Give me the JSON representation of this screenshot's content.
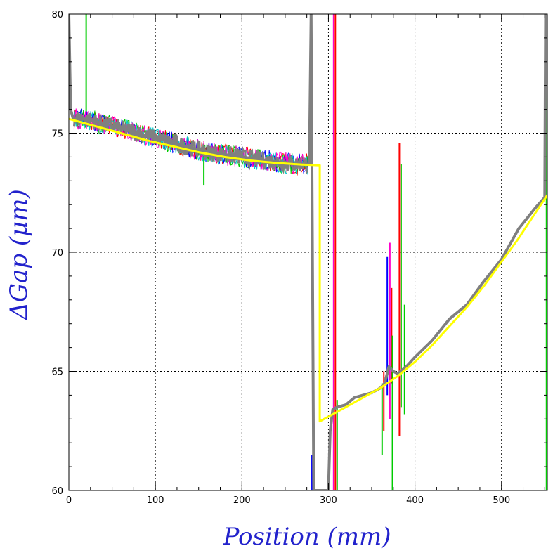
{
  "chart_data": {
    "type": "line",
    "title": "",
    "xlabel": "Position (mm)",
    "ylabel": "ΔGap (μm)",
    "xlim": [
      0,
      553
    ],
    "ylim": [
      60,
      80
    ],
    "x_ticks": [
      0,
      100,
      200,
      300,
      400,
      500
    ],
    "x_tick_labels": [
      "0",
      "100",
      "200",
      "300",
      "400",
      "500"
    ],
    "y_ticks": [
      60,
      65,
      70,
      75,
      80
    ],
    "y_tick_labels": [
      "60",
      "65",
      "70",
      "75",
      "80"
    ],
    "grid": true,
    "legend": "none",
    "colors": {
      "axis_title": "#2222cc",
      "measured": "#808080",
      "fit": "#ffff00",
      "channel_red": "#ff0000",
      "channel_green": "#00cc00",
      "channel_blue": "#0000ff",
      "channel_cyan": "#00cccc",
      "channel_magenta": "#ff00cc"
    },
    "series": [
      {
        "role": "measured",
        "x": [
          0,
          2,
          5,
          20,
          40,
          60,
          80,
          100,
          120,
          140,
          160,
          180,
          200,
          220,
          240,
          260,
          270,
          278,
          280,
          283,
          300,
          302,
          305,
          310,
          320,
          330,
          340,
          350,
          360,
          365,
          370,
          375,
          380,
          390,
          400,
          420,
          440,
          460,
          480,
          500,
          520,
          540,
          550,
          551
        ],
        "y": [
          80,
          76,
          75.6,
          75.6,
          75.4,
          75.2,
          75.0,
          74.8,
          74.6,
          74.4,
          74.2,
          74.1,
          74.0,
          73.9,
          73.8,
          73.7,
          73.7,
          73.7,
          80,
          60,
          60,
          62.5,
          63.4,
          63.5,
          63.6,
          63.9,
          64.0,
          64.1,
          64.3,
          64.5,
          65.2,
          65.0,
          64.9,
          65.2,
          65.6,
          66.3,
          67.2,
          67.8,
          68.8,
          69.7,
          71.0,
          71.9,
          72.3,
          80
        ]
      },
      {
        "role": "fit",
        "x": [
          0,
          30,
          60,
          90,
          120,
          150,
          180,
          210,
          240,
          270,
          290,
          290,
          300,
          320,
          340,
          360,
          380,
          400,
          420,
          440,
          460,
          480,
          500,
          520,
          540,
          553
        ],
        "y": [
          75.6,
          75.3,
          75.0,
          74.7,
          74.45,
          74.2,
          74.0,
          73.85,
          73.75,
          73.68,
          73.65,
          62.9,
          63.1,
          63.5,
          63.9,
          64.3,
          64.8,
          65.4,
          66.1,
          66.9,
          67.7,
          68.6,
          69.6,
          70.6,
          71.7,
          72.4
        ]
      }
    ],
    "spikes": [
      {
        "color": "#00cc00",
        "x": 20,
        "y1": 75.8,
        "y2": 80
      },
      {
        "color": "#00cc00",
        "x": 156,
        "y1": 72.8,
        "y2": 74.4
      },
      {
        "color": "#0000ff",
        "x": 281,
        "y1": 60,
        "y2": 61.5
      },
      {
        "color": "#ff00cc",
        "x": 306,
        "y1": 60,
        "y2": 80
      },
      {
        "color": "#ff0000",
        "x": 308,
        "y1": 60,
        "y2": 80
      },
      {
        "color": "#00cc00",
        "x": 310,
        "y1": 60,
        "y2": 63.8
      },
      {
        "color": "#00cc00",
        "x": 362,
        "y1": 61.5,
        "y2": 64.5
      },
      {
        "color": "#ff0000",
        "x": 364,
        "y1": 62.5,
        "y2": 65.0
      },
      {
        "color": "#0000ff",
        "x": 368,
        "y1": 64.0,
        "y2": 69.8
      },
      {
        "color": "#ff00cc",
        "x": 371,
        "y1": 63.0,
        "y2": 70.4
      },
      {
        "color": "#ff0000",
        "x": 373,
        "y1": 64.5,
        "y2": 68.5
      },
      {
        "color": "#00cc00",
        "x": 374,
        "y1": 60,
        "y2": 66.5
      },
      {
        "color": "#ff0000",
        "x": 382,
        "y1": 62.3,
        "y2": 74.6
      },
      {
        "color": "#00cc00",
        "x": 384,
        "y1": 63.5,
        "y2": 73.7
      },
      {
        "color": "#00cc00",
        "x": 388,
        "y1": 63.2,
        "y2": 67.8
      },
      {
        "color": "#00cc00",
        "x": 552,
        "y1": 60,
        "y2": 80
      }
    ]
  }
}
